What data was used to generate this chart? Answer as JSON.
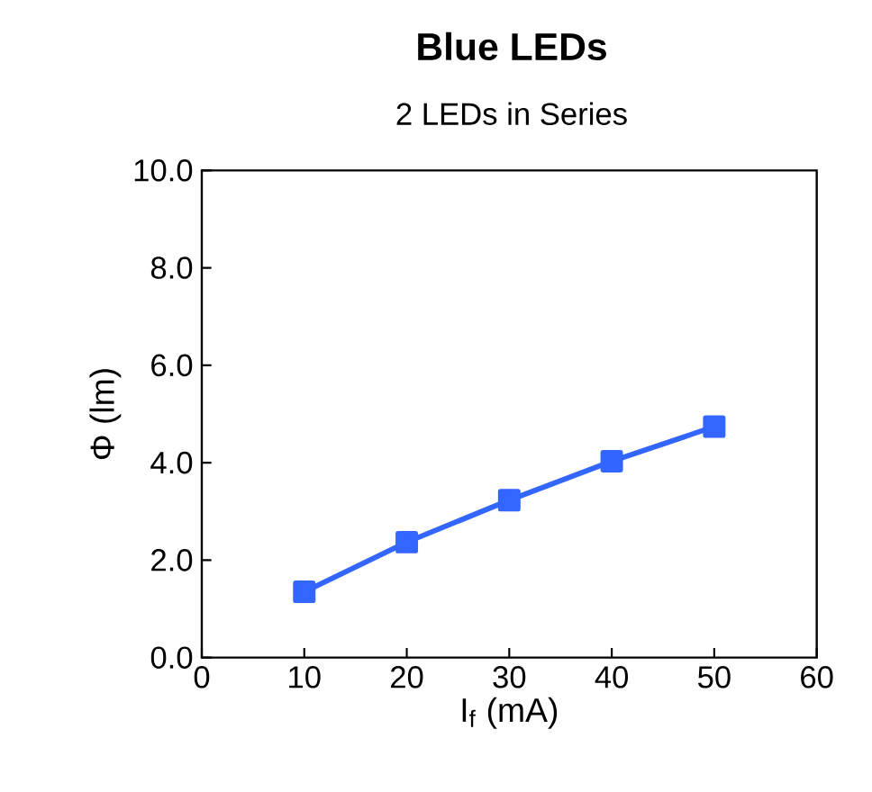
{
  "chart_data": {
    "type": "line",
    "title": "Blue LEDs",
    "subtitle": "2 LEDs in Series",
    "xlabel": "I$_{f}$ (mA)",
    "ylabel": "Φ (lm)",
    "x": [
      10,
      20,
      30,
      40,
      50
    ],
    "series": [
      {
        "color": "#3366ff",
        "values": [
          1.35,
          2.37,
          3.23,
          4.03,
          4.74
        ]
      }
    ],
    "xlim": [
      0,
      60
    ],
    "xticks": [
      0,
      10,
      20,
      30,
      40,
      50,
      60
    ],
    "ylim": [
      0,
      10
    ],
    "yticks": [
      {
        "value": 0,
        "label": "0.0"
      },
      {
        "value": 2,
        "label": "2.0"
      },
      {
        "value": 4,
        "label": "4.0"
      },
      {
        "value": 6,
        "label": "6.0"
      },
      {
        "value": 8,
        "label": "8.0"
      },
      {
        "value": 10,
        "label": "10.0"
      }
    ],
    "marker": "square",
    "line_style": "solid",
    "grid": false
  }
}
